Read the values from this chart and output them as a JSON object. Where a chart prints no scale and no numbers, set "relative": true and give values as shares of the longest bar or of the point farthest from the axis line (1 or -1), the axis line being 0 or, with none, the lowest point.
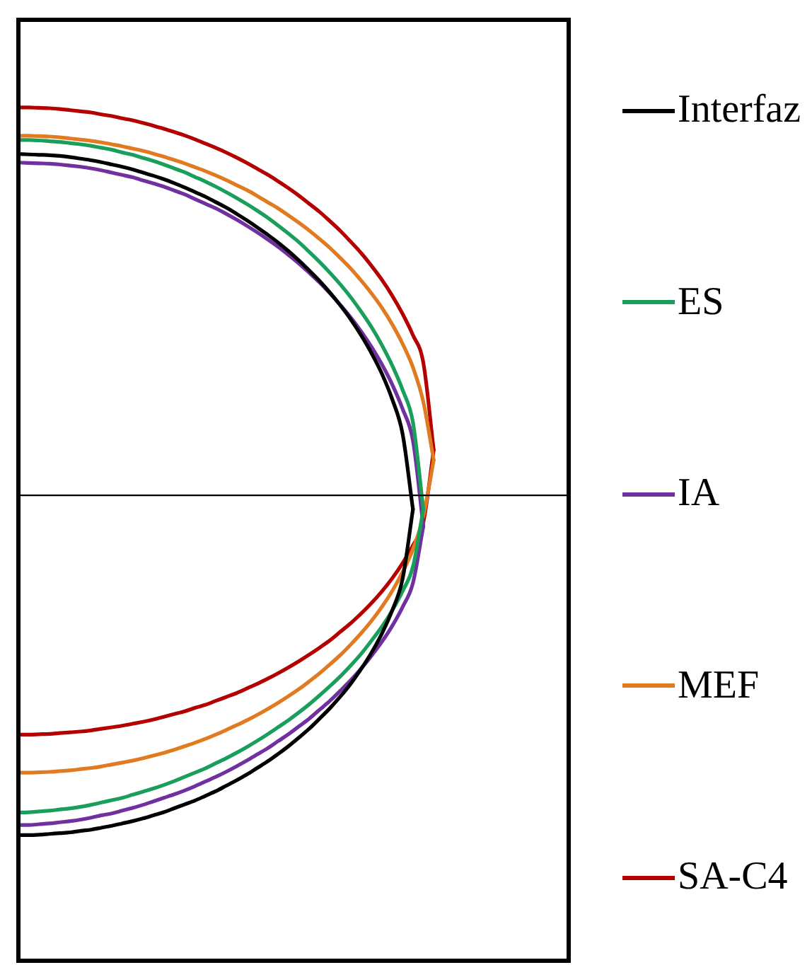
{
  "chart_data": {
    "type": "line",
    "relative": true,
    "legend": "right",
    "marker": "none",
    "line_style": "solid",
    "categories": [
      null,
      null,
      null,
      null,
      null,
      null,
      null,
      null,
      null,
      null,
      null,
      null,
      null,
      null,
      null,
      null,
      null,
      null,
      null,
      null,
      null,
      null,
      null,
      null,
      null,
      null,
      null,
      null,
      null,
      null,
      null,
      null,
      null,
      null,
      null,
      null,
      null,
      null,
      null,
      null,
      null,
      null,
      null,
      null,
      null,
      null,
      null,
      null,
      null,
      null,
      null,
      null,
      null,
      null
    ],
    "series": [
      {
        "name": "Interfaz",
        "color": "#000000",
        "values": [
          0.88,
          0.879,
          0.878,
          0.877,
          0.875,
          0.872,
          0.868,
          0.864,
          0.859,
          0.853,
          0.847,
          0.84,
          0.832,
          0.824,
          0.815,
          0.805,
          0.794,
          0.782,
          0.77,
          0.756,
          0.742,
          0.726,
          0.709,
          0.691,
          0.672,
          0.652,
          0.63,
          0.606,
          0.58,
          0.553,
          0.523,
          0.49,
          0.454,
          0.413,
          0.367,
          0.314,
          0.248,
          0.159,
          -0.036,
          null,
          null,
          null,
          null,
          null,
          null,
          null,
          null,
          null,
          null,
          null,
          null,
          null,
          null,
          null
        ]
      },
      {
        "color": "#000000",
        "values": [
          -0.876,
          -0.876,
          -0.875,
          -0.873,
          -0.871,
          -0.869,
          -0.865,
          -0.862,
          -0.857,
          -0.852,
          -0.846,
          -0.84,
          -0.833,
          -0.825,
          -0.817,
          -0.807,
          -0.797,
          -0.787,
          -0.775,
          -0.763,
          -0.749,
          -0.735,
          -0.72,
          -0.703,
          -0.686,
          -0.667,
          -0.647,
          -0.625,
          -0.602,
          -0.576,
          -0.549,
          -0.519,
          -0.486,
          -0.448,
          -0.406,
          -0.357,
          -0.297,
          -0.216,
          -0.036,
          null,
          null,
          null,
          null,
          null,
          null,
          null,
          null,
          null,
          null,
          null,
          null,
          null,
          null,
          null
        ]
      },
      {
        "name": "ES",
        "color": "#1a9e5c",
        "values": [
          0.916,
          0.916,
          0.915,
          0.913,
          0.911,
          0.908,
          0.905,
          0.901,
          0.896,
          0.891,
          0.884,
          0.878,
          0.87,
          0.862,
          0.853,
          0.843,
          0.833,
          0.821,
          0.809,
          0.796,
          0.782,
          0.767,
          0.751,
          0.734,
          0.716,
          0.696,
          0.675,
          0.653,
          0.628,
          0.602,
          0.574,
          0.544,
          0.511,
          0.474,
          0.434,
          0.388,
          0.335,
          0.272,
          0.188,
          -0.036,
          null,
          null,
          null,
          null,
          null,
          null,
          null,
          null,
          null,
          null,
          null,
          null,
          null,
          null
        ]
      },
      {
        "color": "#1a9e5c",
        "values": [
          -0.818,
          -0.817,
          -0.815,
          -0.813,
          -0.81,
          -0.807,
          -0.803,
          -0.798,
          -0.792,
          -0.786,
          -0.78,
          -0.772,
          -0.764,
          -0.756,
          -0.747,
          -0.737,
          -0.726,
          -0.715,
          -0.704,
          -0.691,
          -0.678,
          -0.664,
          -0.649,
          -0.633,
          -0.616,
          -0.598,
          -0.58,
          -0.56,
          -0.539,
          -0.516,
          -0.492,
          -0.467,
          -0.439,
          -0.409,
          -0.375,
          -0.339,
          -0.297,
          -0.247,
          -0.184,
          -0.036,
          null,
          null,
          null,
          null,
          null,
          null,
          null,
          null,
          null,
          null,
          null,
          null,
          null,
          null
        ]
      },
      {
        "name": "IA",
        "color": "#7030a0",
        "values": [
          0.858,
          0.857,
          0.856,
          0.855,
          0.853,
          0.85,
          0.847,
          0.843,
          0.838,
          0.832,
          0.826,
          0.82,
          0.812,
          0.804,
          0.796,
          0.786,
          0.776,
          0.764,
          0.752,
          0.74,
          0.726,
          0.711,
          0.695,
          0.678,
          0.66,
          0.641,
          0.62,
          0.598,
          0.574,
          0.549,
          0.521,
          0.491,
          0.459,
          0.423,
          0.383,
          0.338,
          0.286,
          0.223,
          0.141,
          -0.08,
          null,
          null,
          null,
          null,
          null,
          null,
          null,
          null,
          null,
          null,
          null,
          null,
          null,
          null
        ]
      },
      {
        "color": "#7030a0",
        "values": [
          -0.85,
          -0.85,
          -0.848,
          -0.846,
          -0.843,
          -0.84,
          -0.836,
          -0.831,
          -0.825,
          -0.82,
          -0.813,
          -0.806,
          -0.798,
          -0.789,
          -0.78,
          -0.771,
          -0.761,
          -0.75,
          -0.738,
          -0.726,
          -0.713,
          -0.699,
          -0.684,
          -0.668,
          -0.652,
          -0.634,
          -0.616,
          -0.596,
          -0.576,
          -0.553,
          -0.53,
          -0.504,
          -0.477,
          -0.447,
          -0.414,
          -0.378,
          -0.337,
          -0.288,
          -0.226,
          -0.08,
          null,
          null,
          null,
          null,
          null,
          null,
          null,
          null,
          null,
          null,
          null,
          null,
          null,
          null
        ]
      },
      {
        "name": "MEF",
        "color": "#e07b22",
        "values": [
          0.927,
          0.927,
          0.926,
          0.925,
          0.923,
          0.92,
          0.917,
          0.914,
          0.91,
          0.905,
          0.9,
          0.894,
          0.888,
          0.881,
          0.873,
          0.865,
          0.856,
          0.846,
          0.836,
          0.825,
          0.813,
          0.8,
          0.787,
          0.772,
          0.756,
          0.74,
          0.722,
          0.703,
          0.683,
          0.661,
          0.638,
          0.612,
          0.585,
          0.554,
          0.521,
          0.484,
          0.441,
          0.391,
          0.33,
          0.241,
          0.091,
          null,
          null,
          null,
          null,
          null,
          null,
          null,
          null,
          null,
          null,
          null,
          null,
          null
        ]
      },
      {
        "color": "#e07b22",
        "values": [
          -0.715,
          -0.715,
          -0.714,
          -0.713,
          -0.711,
          -0.709,
          -0.706,
          -0.703,
          -0.699,
          -0.694,
          -0.689,
          -0.684,
          -0.678,
          -0.671,
          -0.664,
          -0.656,
          -0.647,
          -0.638,
          -0.628,
          -0.617,
          -0.605,
          -0.593,
          -0.58,
          -0.566,
          -0.551,
          -0.535,
          -0.518,
          -0.5,
          -0.48,
          -0.459,
          -0.436,
          -0.412,
          -0.385,
          -0.356,
          -0.324,
          -0.288,
          -0.247,
          -0.198,
          -0.139,
          -0.054,
          0.091,
          null,
          null,
          null,
          null,
          null,
          null,
          null,
          null,
          null,
          null,
          null,
          null,
          null
        ]
      },
      {
        "name": "SA-C4",
        "color": "#b40000",
        "values": [
          1,
          1,
          0.999,
          0.998,
          0.996,
          0.993,
          0.99,
          0.987,
          0.982,
          0.978,
          0.972,
          0.967,
          0.96,
          0.953,
          0.945,
          0.937,
          0.928,
          0.918,
          0.907,
          0.896,
          0.884,
          0.871,
          0.857,
          0.842,
          0.827,
          0.81,
          0.792,
          0.773,
          0.752,
          0.731,
          0.707,
          0.682,
          0.654,
          0.625,
          0.592,
          0.556,
          0.515,
          0.468,
          0.413,
          0.342,
          0.117,
          null,
          null,
          null,
          null,
          null,
          null,
          null,
          null,
          null,
          null,
          null,
          null,
          null
        ]
      },
      {
        "color": "#b40000",
        "values": [
          -0.617,
          -0.617,
          -0.616,
          -0.615,
          -0.613,
          -0.611,
          -0.609,
          -0.606,
          -0.602,
          -0.598,
          -0.594,
          -0.589,
          -0.584,
          -0.578,
          -0.571,
          -0.564,
          -0.557,
          -0.548,
          -0.54,
          -0.53,
          -0.52,
          -0.51,
          -0.498,
          -0.486,
          -0.473,
          -0.459,
          -0.444,
          -0.428,
          -0.411,
          -0.393,
          -0.374,
          -0.352,
          -0.33,
          -0.305,
          -0.278,
          -0.248,
          -0.214,
          -0.175,
          -0.129,
          -0.07,
          0.117,
          null,
          null,
          null,
          null,
          null,
          null,
          null,
          null,
          null,
          null,
          null,
          null,
          null
        ]
      }
    ]
  }
}
